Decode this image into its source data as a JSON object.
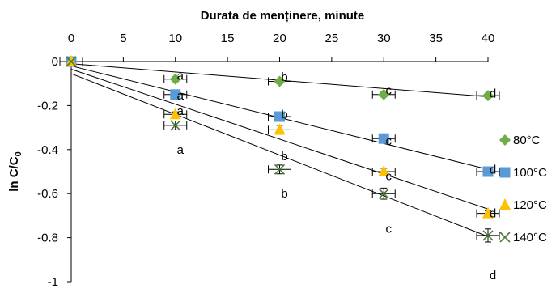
{
  "chart_data": {
    "type": "scatter",
    "title": "",
    "xlabel": "Durata de menținere, minute",
    "ylabel_main": "ln C/C",
    "ylabel_sub": "0",
    "x_axis_position": "top",
    "xlim": [
      0,
      40
    ],
    "ylim": [
      -1,
      0
    ],
    "x_ticks": [
      0,
      5,
      10,
      15,
      20,
      25,
      30,
      35,
      40
    ],
    "y_ticks": [
      0,
      -0.2,
      -0.4,
      -0.6,
      -0.8,
      -1
    ],
    "y_tick_labels": [
      "0",
      "-0.2",
      "-0.4",
      "-0.6",
      "-0.8",
      "-1"
    ],
    "grid": false,
    "legend_position": "right",
    "x": [
      0,
      10,
      20,
      30,
      40
    ],
    "series": [
      {
        "name": "80°C",
        "marker": "diamond",
        "color": "#70AD47",
        "values": [
          0,
          -0.08,
          -0.09,
          -0.15,
          -0.155
        ],
        "error": [
          0,
          0.01,
          0.01,
          0.01,
          0.005
        ],
        "fit_line": {
          "x": [
            0,
            40
          ],
          "y": [
            -0.01,
            -0.16
          ]
        },
        "letters": [
          "a",
          "b",
          "c",
          "d"
        ],
        "letter_y": [
          -0.065,
          -0.07,
          -0.13,
          -0.145
        ]
      },
      {
        "name": "100°C",
        "marker": "square",
        "color": "#5B9BD5",
        "values": [
          0,
          -0.15,
          -0.25,
          -0.35,
          -0.5
        ],
        "error": [
          0,
          0.01,
          0.02,
          0.01,
          0.01
        ],
        "fit_line": {
          "x": [
            0,
            40
          ],
          "y": [
            -0.02,
            -0.49
          ]
        },
        "letters": [
          "a",
          "b",
          "c",
          "d"
        ],
        "letter_y": [
          -0.155,
          -0.24,
          -0.36,
          -0.49
        ]
      },
      {
        "name": "120°C",
        "marker": "triangle",
        "color": "#FFC000",
        "values": [
          0,
          -0.24,
          -0.31,
          -0.5,
          -0.69
        ],
        "error": [
          0,
          0.01,
          0.02,
          0.015,
          0.01
        ],
        "fit_line": {
          "x": [
            0,
            40
          ],
          "y": [
            -0.035,
            -0.67
          ]
        },
        "letters": [
          "a",
          "b",
          "c",
          "d"
        ],
        "letter_y": [
          -0.225,
          -0.43,
          -0.52,
          -0.69
        ]
      },
      {
        "name": "140°C",
        "marker": "x",
        "color": "#4F7A3A",
        "values": [
          0,
          -0.29,
          -0.49,
          -0.6,
          -0.79
        ],
        "error": [
          0,
          0.02,
          0.02,
          0.025,
          0.03
        ],
        "fit_line": {
          "x": [
            0,
            40
          ],
          "y": [
            -0.055,
            -0.795
          ]
        },
        "letters": [
          "a",
          "b",
          "c",
          "d"
        ],
        "letter_y": [
          -0.4,
          -0.6,
          -0.76,
          -0.97
        ]
      }
    ]
  }
}
